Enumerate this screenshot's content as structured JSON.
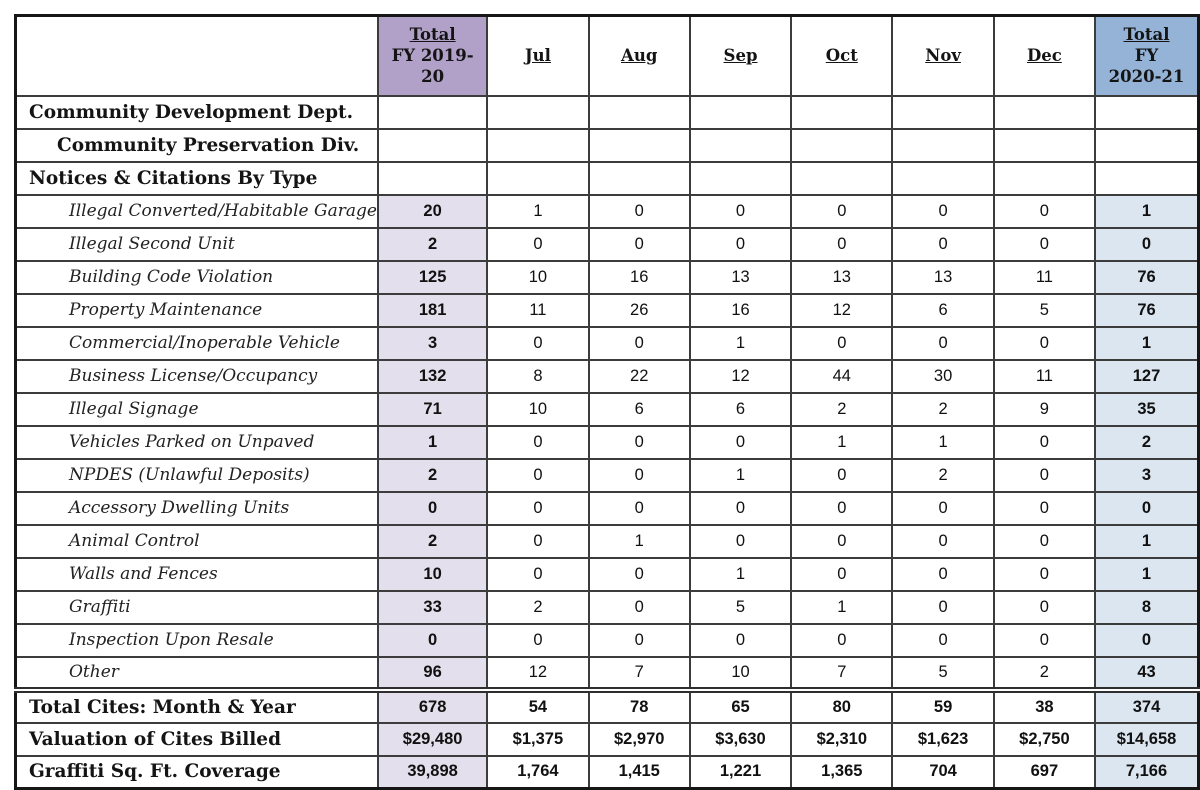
{
  "colors": {
    "header_purple": "#b1a0c7",
    "header_blue": "#95b3d7",
    "column_purple": "#e4dfec",
    "column_blue": "#dce6f1"
  },
  "header": {
    "columns": [
      {
        "name": "corner-blank",
        "style": "blank",
        "lines": []
      },
      {
        "name": "col-total-fy-2019-20",
        "style": "purple",
        "lines": [
          "Total",
          "FY 2019-",
          "20"
        ]
      },
      {
        "name": "col-jul",
        "style": "month",
        "lines": [
          "Jul"
        ]
      },
      {
        "name": "col-aug",
        "style": "month",
        "lines": [
          "Aug"
        ]
      },
      {
        "name": "col-sep",
        "style": "month",
        "lines": [
          "Sep"
        ]
      },
      {
        "name": "col-oct",
        "style": "month",
        "lines": [
          "Oct"
        ]
      },
      {
        "name": "col-nov",
        "style": "month",
        "lines": [
          "Nov"
        ]
      },
      {
        "name": "col-dec",
        "style": "month",
        "lines": [
          "Dec"
        ]
      },
      {
        "name": "col-total-fy-2020-21",
        "style": "blue",
        "lines": [
          "Total",
          "FY",
          "2020-21"
        ]
      }
    ]
  },
  "rows": [
    {
      "type": "section",
      "indent": 1,
      "label": "Community Development Dept.",
      "cells": [
        "",
        "",
        "",
        "",
        "",
        "",
        "",
        ""
      ]
    },
    {
      "type": "section",
      "indent": 2,
      "label": "Community Preservation Div.",
      "cells": [
        "",
        "",
        "",
        "",
        "",
        "",
        "",
        ""
      ]
    },
    {
      "type": "section",
      "indent": 1,
      "label": "Notices & Citations By Type",
      "cells": [
        "",
        "",
        "",
        "",
        "",
        "",
        "",
        ""
      ]
    },
    {
      "type": "data",
      "label": "Illegal Converted/Habitable Garage",
      "cells": [
        "20",
        "1",
        "0",
        "0",
        "0",
        "0",
        "0",
        "1"
      ]
    },
    {
      "type": "data",
      "label": "Illegal Second Unit",
      "cells": [
        "2",
        "0",
        "0",
        "0",
        "0",
        "0",
        "0",
        "0"
      ]
    },
    {
      "type": "data",
      "label": "Building Code Violation",
      "cells": [
        "125",
        "10",
        "16",
        "13",
        "13",
        "13",
        "11",
        "76"
      ]
    },
    {
      "type": "data",
      "label": "Property Maintenance",
      "cells": [
        "181",
        "11",
        "26",
        "16",
        "12",
        "6",
        "5",
        "76"
      ]
    },
    {
      "type": "data",
      "label": "Commercial/Inoperable Vehicle",
      "cells": [
        "3",
        "0",
        "0",
        "1",
        "0",
        "0",
        "0",
        "1"
      ]
    },
    {
      "type": "data",
      "label": "Business License/Occupancy",
      "cells": [
        "132",
        "8",
        "22",
        "12",
        "44",
        "30",
        "11",
        "127"
      ]
    },
    {
      "type": "data",
      "label": "Illegal Signage",
      "cells": [
        "71",
        "10",
        "6",
        "6",
        "2",
        "2",
        "9",
        "35"
      ]
    },
    {
      "type": "data",
      "label": "Vehicles Parked on Unpaved",
      "cells": [
        "1",
        "0",
        "0",
        "0",
        "1",
        "1",
        "0",
        "2"
      ]
    },
    {
      "type": "data",
      "label": "NPDES (Unlawful Deposits)",
      "cells": [
        "2",
        "0",
        "0",
        "1",
        "0",
        "2",
        "0",
        "3"
      ]
    },
    {
      "type": "data",
      "label": "Accessory Dwelling Units",
      "cells": [
        "0",
        "0",
        "0",
        "0",
        "0",
        "0",
        "0",
        "0"
      ]
    },
    {
      "type": "data",
      "label": "Animal Control",
      "cells": [
        "2",
        "0",
        "1",
        "0",
        "0",
        "0",
        "0",
        "1"
      ]
    },
    {
      "type": "data",
      "label": "Walls and Fences",
      "cells": [
        "10",
        "0",
        "0",
        "1",
        "0",
        "0",
        "0",
        "1"
      ]
    },
    {
      "type": "data",
      "label": "Graffiti",
      "cells": [
        "33",
        "2",
        "0",
        "5",
        "1",
        "0",
        "0",
        "8"
      ]
    },
    {
      "type": "data",
      "label": "Inspection Upon Resale",
      "cells": [
        "0",
        "0",
        "0",
        "0",
        "0",
        "0",
        "0",
        "0"
      ]
    },
    {
      "type": "data",
      "label": "Other",
      "cells": [
        "96",
        "12",
        "7",
        "10",
        "7",
        "5",
        "2",
        "43"
      ]
    },
    {
      "type": "summary",
      "label": "Total Cites: Month & Year",
      "cells": [
        "678",
        "54",
        "78",
        "65",
        "80",
        "59",
        "38",
        "374"
      ]
    },
    {
      "type": "summary",
      "label": "Valuation of Cites Billed",
      "cells": [
        "$29,480",
        "$1,375",
        "$2,970",
        "$3,630",
        "$2,310",
        "$1,623",
        "$2,750",
        "$14,658"
      ]
    },
    {
      "type": "summary",
      "label": "Graffiti Sq. Ft. Coverage",
      "cells": [
        "39,898",
        "1,764",
        "1,415",
        "1,221",
        "1,365",
        "704",
        "697",
        "7,166"
      ]
    }
  ]
}
